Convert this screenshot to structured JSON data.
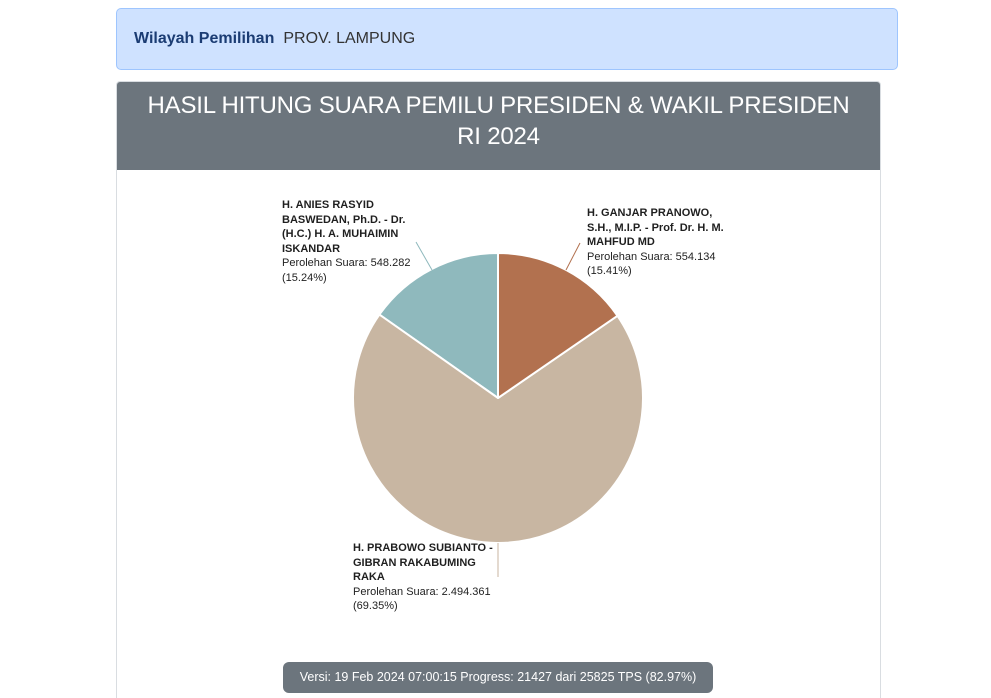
{
  "banner": {
    "label": "Wilayah Pemilihan",
    "value": "PROV. LAMPUNG"
  },
  "chart_data": {
    "type": "pie",
    "title_lines": [
      "HASIL HITUNG SUARA PEMILU PRESIDEN & WAKIL PRESIDEN",
      "RI 2024"
    ],
    "slices": [
      {
        "name_lines": [
          "H. ANIES RASYID",
          "BASWEDAN, Ph.D. - Dr.",
          "(H.C.) H. A. MUHAIMIN",
          "ISKANDAR"
        ],
        "votes_label": "Perolehan Suara: 548.282",
        "percent_label": "(15.24%)",
        "value": 548282,
        "percent": 15.24,
        "color": "#8fb9bd"
      },
      {
        "name_lines": [
          "H. PRABOWO SUBIANTO -",
          "GIBRAN RAKABUMING",
          "RAKA"
        ],
        "votes_label": "Perolehan Suara: 2.494.361",
        "percent_label": "(69.35%)",
        "value": 2494361,
        "percent": 69.35,
        "color": "#c8b6a2"
      },
      {
        "name_lines": [
          "H. GANJAR PRANOWO,",
          "S.H., M.I.P. - Prof. Dr. H. M.",
          "MAHFUD MD"
        ],
        "votes_label": "Perolehan Suara: 554.134",
        "percent_label": "(15.41%)",
        "value": 554134,
        "percent": 15.41,
        "color": "#b2714f"
      }
    ]
  },
  "footer": {
    "status_text": "Versi: 19 Feb 2024 07:00:15 Progress: 21427 dari 25825 TPS (82.97%)"
  }
}
